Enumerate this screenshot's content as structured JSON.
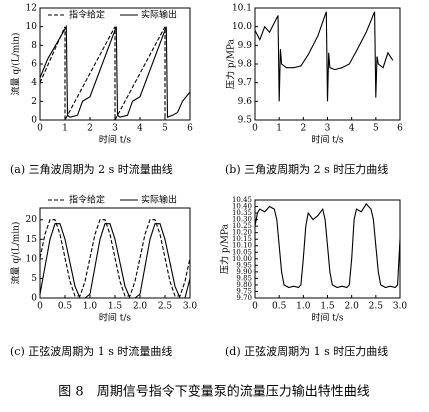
{
  "chart_data": [
    {
      "type": "line",
      "caption": "(a)  三角波周期为 2 s 时流量曲线",
      "x_label": "时间 t/s",
      "y_label": "流量 q/(L/min)",
      "xlim": [
        0,
        6
      ],
      "xticks": [
        0,
        1,
        2,
        3,
        4,
        5,
        6
      ],
      "ylim": [
        0,
        12
      ],
      "yticks": [
        0,
        2,
        4,
        6,
        8,
        10,
        12
      ],
      "legend": "top",
      "series": [
        {
          "name": "指令给定",
          "color": "#000000",
          "dash": true,
          "x": [
            0,
            1,
            1,
            3,
            3,
            5,
            5
          ],
          "values": [
            4,
            10,
            0,
            10,
            0,
            10,
            0
          ]
        },
        {
          "name": "实际输出",
          "color": "#000000",
          "dash": false,
          "x": [
            0,
            0.3,
            1.05,
            1.1,
            1.2,
            1.5,
            1.7,
            2.0,
            3.05,
            3.1,
            3.2,
            3.5,
            3.7,
            4.0,
            5.05,
            5.1,
            5.3,
            5.5,
            5.7,
            6.0
          ],
          "values": [
            4.5,
            6.5,
            10,
            0.5,
            0.3,
            0.5,
            2,
            2.5,
            10,
            0.5,
            0.3,
            0.5,
            2,
            2.5,
            10,
            0.3,
            0.5,
            0.8,
            2,
            3
          ]
        }
      ]
    },
    {
      "type": "line",
      "caption": "(b)  三角波周期为 2 s 时压力曲线",
      "x_label": "时间 t/s",
      "y_label": "压力 p/MPa",
      "xlim": [
        0,
        6
      ],
      "xticks": [
        0,
        1,
        2,
        3,
        4,
        5,
        6
      ],
      "ylim": [
        9.5,
        10.1
      ],
      "yticks": [
        9.5,
        9.6,
        9.7,
        9.8,
        9.9,
        {
          "value": 10,
          "label": "10.0"
        },
        10.1
      ],
      "series": [
        {
          "color": "#000000",
          "dash": false,
          "x": [
            0,
            0.2,
            0.4,
            0.6,
            0.8,
            0.95,
            1.0,
            1.05,
            1.1,
            1.3,
            1.6,
            1.9,
            2.2,
            2.6,
            2.95,
            3.0,
            3.05,
            3.1,
            3.3,
            3.6,
            3.9,
            4.2,
            4.6,
            4.95,
            5.0,
            5.05,
            5.1,
            5.3,
            5.5,
            5.7
          ],
          "values": [
            9.98,
            9.93,
            10.0,
            9.97,
            10.02,
            10.06,
            9.6,
            9.88,
            9.8,
            9.78,
            9.78,
            9.79,
            9.85,
            9.95,
            10.08,
            9.6,
            9.86,
            9.78,
            9.77,
            9.78,
            9.8,
            9.87,
            9.97,
            10.08,
            9.62,
            9.84,
            9.8,
            9.78,
            9.86,
            9.82
          ]
        }
      ]
    },
    {
      "type": "line",
      "caption": "(c)  正弦波周期为 1 s 时流量曲线",
      "x_label": "时间 t/s",
      "y_label": "流量 q/(L/min)",
      "xlim": [
        0,
        3
      ],
      "xticks": [
        0,
        0.5,
        {
          "value": 1,
          "label": "1.0"
        },
        1.5,
        {
          "value": 2,
          "label": "2.0"
        },
        2.5,
        {
          "value": 3,
          "label": "3.0"
        }
      ],
      "ylim": [
        0,
        23
      ],
      "yticks": [
        0,
        5,
        10,
        15,
        20
      ],
      "legend": "above",
      "series": [
        {
          "name": "指令给定",
          "color": "#000000",
          "dash": true,
          "x": [
            0,
            0.1,
            0.2,
            0.3,
            0.4,
            0.5,
            0.6,
            0.7,
            0.8,
            0.9,
            1.0,
            1.1,
            1.2,
            1.3,
            1.4,
            1.5,
            1.6,
            1.7,
            1.8,
            1.9,
            2.0,
            2.1,
            2.2,
            2.3,
            2.4,
            2.5,
            2.6,
            2.7,
            2.8,
            2.9,
            3.0
          ],
          "values": [
            10.25,
            16.27,
            20,
            20,
            16.27,
            10.25,
            4.23,
            0.5,
            0.5,
            4.23,
            10.25,
            16.27,
            20,
            20,
            16.27,
            10.25,
            4.23,
            0.5,
            0.5,
            4.23,
            10.25,
            16.27,
            20,
            20,
            16.27,
            10.25,
            4.23,
            0.5,
            0.5,
            4.23,
            10.25
          ]
        },
        {
          "name": "实际输出",
          "color": "#000000",
          "dash": false,
          "x": [
            0,
            0.1,
            0.2,
            0.3,
            0.4,
            0.5,
            0.6,
            0.7,
            0.8,
            0.9,
            1.0,
            1.1,
            1.2,
            1.3,
            1.4,
            1.5,
            1.6,
            1.7,
            1.8,
            1.9,
            2.0,
            2.1,
            2.2,
            2.3,
            2.4,
            2.5,
            2.6,
            2.7,
            2.8,
            2.9,
            3.0
          ],
          "values": [
            1,
            8,
            15,
            19,
            19,
            15,
            9,
            3,
            0,
            0,
            1,
            8,
            15,
            19,
            19,
            15,
            9,
            3,
            0,
            0,
            1,
            8,
            15,
            19,
            19,
            15,
            9,
            3,
            0,
            0,
            5
          ]
        }
      ]
    },
    {
      "type": "line",
      "caption": "(d)  正弦波周期为 1 s 时压力曲线",
      "x_label": "时间 t/s",
      "y_label": "压力 p/MPa",
      "xlim": [
        0,
        3
      ],
      "xticks": [
        0,
        0.5,
        {
          "value": 1,
          "label": "1.0"
        },
        1.5,
        {
          "value": 2,
          "label": "2.0"
        },
        2.5,
        {
          "value": 3,
          "label": "3.0"
        }
      ],
      "ylim": [
        9.7,
        10.45
      ],
      "yticks": [
        {
          "value": 9.7,
          "label": "9.70"
        },
        9.75,
        {
          "value": 9.8,
          "label": "9.80"
        },
        9.85,
        {
          "value": 9.9,
          "label": "9.90"
        },
        9.95,
        {
          "value": 10,
          "label": "10.00"
        },
        10.05,
        {
          "value": 10.1,
          "label": "10.10"
        },
        10.15,
        {
          "value": 10.2,
          "label": "10.20"
        },
        10.25,
        {
          "value": 10.3,
          "label": "10.30"
        },
        10.35,
        {
          "value": 10.4,
          "label": "10.40"
        },
        10.45
      ],
      "series": [
        {
          "color": "#000000",
          "dash": false,
          "x": [
            0,
            0.05,
            0.1,
            0.2,
            0.3,
            0.4,
            0.45,
            0.5,
            0.55,
            0.6,
            0.7,
            0.8,
            0.9,
            0.95,
            1.0,
            1.05,
            1.1,
            1.2,
            1.3,
            1.4,
            1.45,
            1.5,
            1.55,
            1.6,
            1.7,
            1.8,
            1.9,
            1.95,
            2.0,
            2.05,
            2.1,
            2.2,
            2.3,
            2.4,
            2.45,
            2.5,
            2.55,
            2.6,
            2.7,
            2.8,
            2.9,
            2.95,
            3.0
          ],
          "values": [
            10.25,
            10.35,
            10.38,
            10.36,
            10.4,
            10.38,
            10.3,
            10.1,
            9.9,
            9.8,
            9.78,
            9.79,
            9.78,
            9.8,
            10.0,
            10.25,
            10.35,
            10.3,
            10.33,
            10.38,
            10.3,
            10.1,
            9.9,
            9.8,
            9.78,
            9.79,
            9.78,
            9.8,
            10.0,
            10.3,
            10.38,
            10.36,
            10.42,
            10.38,
            10.3,
            10.1,
            9.9,
            9.8,
            9.78,
            9.79,
            9.78,
            9.8,
            10.15
          ]
        }
      ]
    }
  ],
  "figure_title": "图 8　周期信号指令下变量泵的流量压力输出特性曲线"
}
